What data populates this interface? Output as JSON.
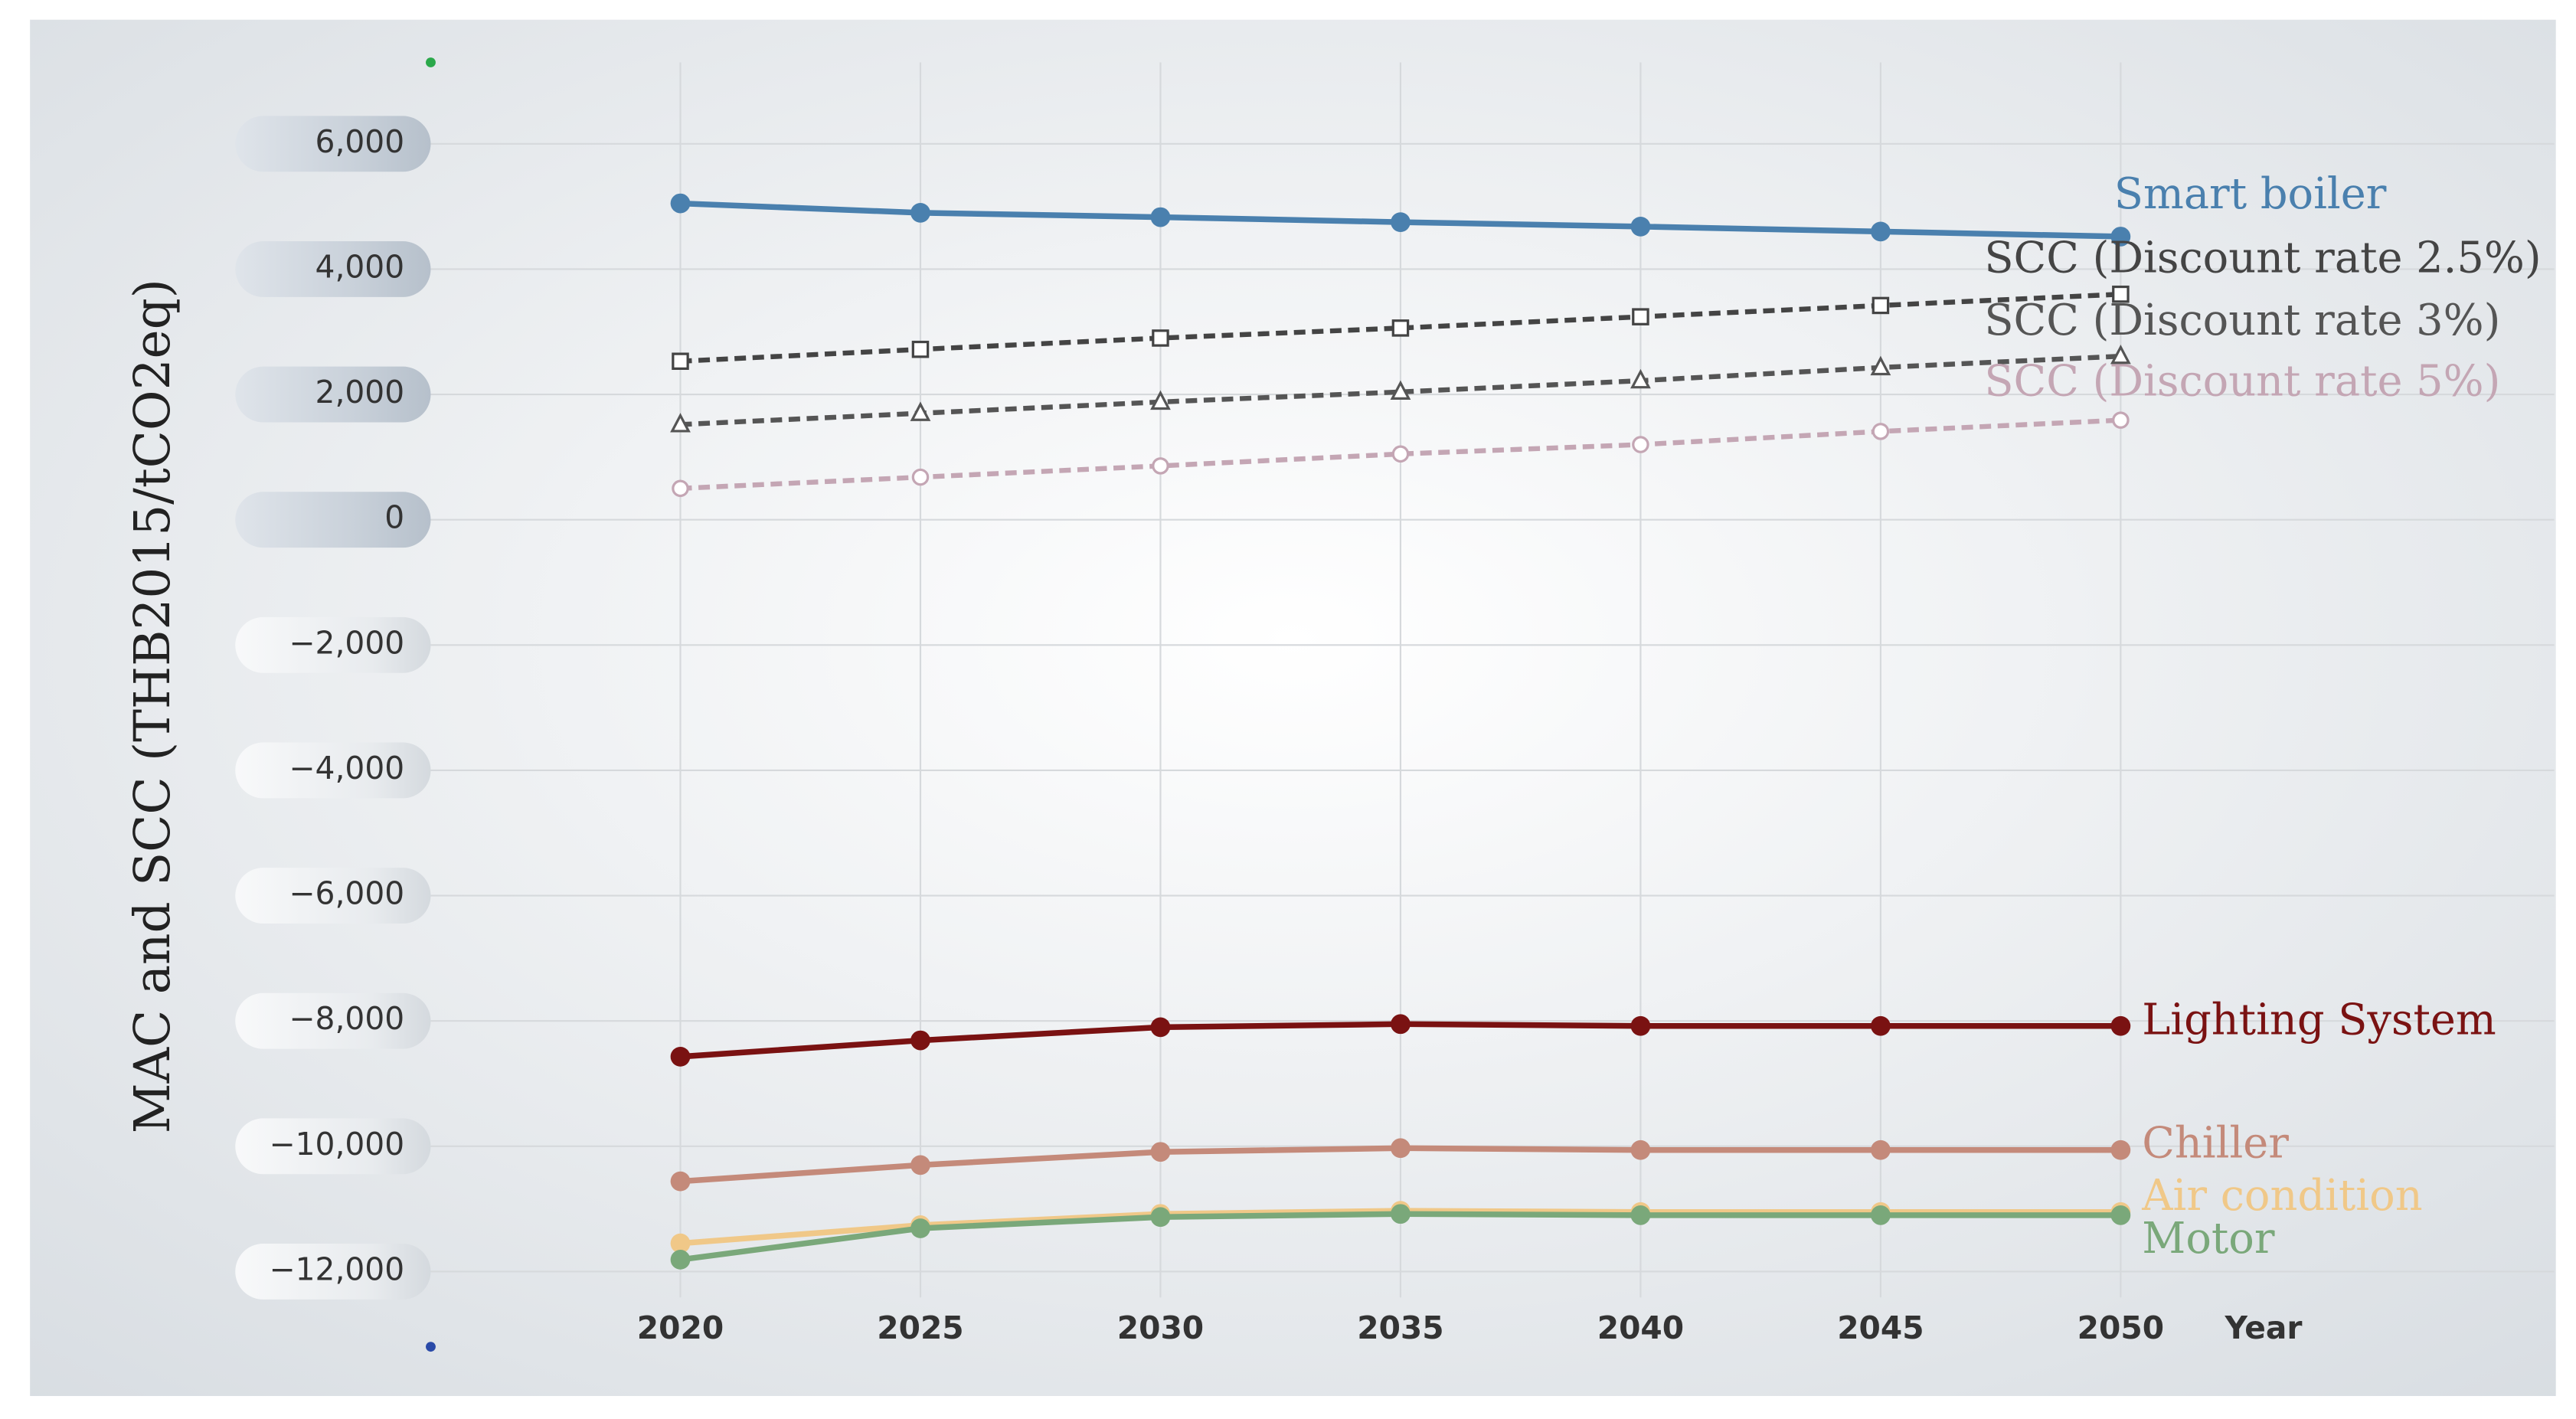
{
  "chart_data": {
    "type": "line",
    "y_label": "MAC and SCC (THB2015/tCO2eq)",
    "x_label": "Year",
    "x": [
      2020,
      2025,
      2030,
      2035,
      2040,
      2045,
      2050
    ],
    "xlim": [
      2014.8,
      2059
    ],
    "xticks": [
      2020,
      2025,
      2030,
      2035,
      2040,
      2045,
      2050
    ],
    "ylim": [
      -13200,
      7300
    ],
    "yticks": [
      {
        "value": -12000,
        "label": "−12,000"
      },
      {
        "value": -10000,
        "label": "−10,000"
      },
      {
        "value": -8000,
        "label": "−8,000"
      },
      {
        "value": -6000,
        "label": "−6,000"
      },
      {
        "value": -4000,
        "label": "−4,000"
      },
      {
        "value": -2000,
        "label": "−2,000"
      },
      0,
      {
        "value": 2000,
        "label": "2,000"
      },
      {
        "value": 4000,
        "label": "4,000"
      },
      {
        "value": 6000,
        "label": "6,000"
      }
    ],
    "grid": true,
    "series": [
      {
        "name": "Smart boiler",
        "color": "#4a80ae",
        "marker": "filled-circle",
        "dashed": false,
        "values": [
          5050,
          4900,
          4830,
          4750,
          4680,
          4600,
          4520
        ]
      },
      {
        "name": "SCC (Discount rate 2.5%)",
        "color": "#444444",
        "marker": "open-square",
        "dashed": true,
        "values": [
          2530,
          2720,
          2900,
          3060,
          3240,
          3420,
          3600
        ]
      },
      {
        "name": "SCC (Discount rate 3%)",
        "color": "#555555",
        "marker": "open-triangle",
        "dashed": true,
        "values": [
          1520,
          1700,
          1880,
          2040,
          2220,
          2430,
          2610
        ]
      },
      {
        "name": "SCC (Discount rate 5%)",
        "color": "#c4a6b4",
        "marker": "open-circle",
        "dashed": true,
        "values": [
          500,
          680,
          860,
          1050,
          1200,
          1410,
          1590
        ]
      },
      {
        "name": "Lighting System",
        "color": "#7a1212",
        "marker": "filled-circle",
        "dashed": false,
        "values": [
          -8570,
          -8310,
          -8100,
          -8050,
          -8080,
          -8080,
          -8080
        ]
      },
      {
        "name": "Chiller",
        "color": "#c48a7a",
        "marker": "filled-circle",
        "dashed": false,
        "values": [
          -10560,
          -10300,
          -10090,
          -10030,
          -10060,
          -10060,
          -10060
        ]
      },
      {
        "name": "Air condition",
        "color": "#f0c888",
        "marker": "filled-circle",
        "dashed": false,
        "values": [
          -11550,
          -11260,
          -11080,
          -11030,
          -11050,
          -11050,
          -11050
        ]
      },
      {
        "name": "Motor",
        "color": "#7aa87a",
        "marker": "filled-circle",
        "dashed": false,
        "values": [
          -11810,
          -11310,
          -11130,
          -11080,
          -11100,
          -11100,
          -11100
        ]
      }
    ]
  }
}
